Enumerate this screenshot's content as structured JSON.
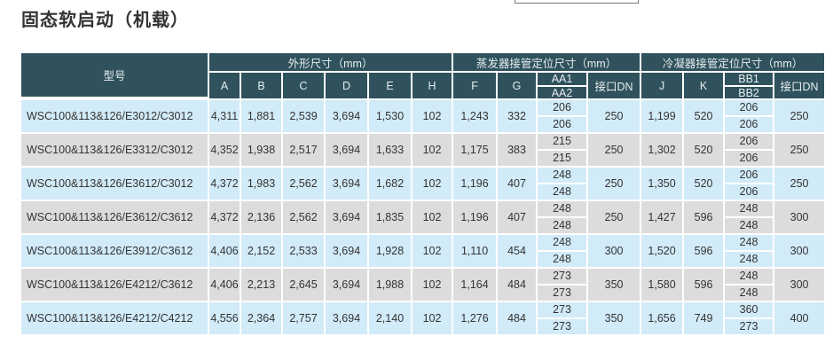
{
  "title": "固态软启动（机载）",
  "headers": {
    "model": "型号",
    "group1": "外形尺寸（mm）",
    "group2": "蒸发器接管定位尺寸（mm）",
    "group3": "冷凝器接管定位尺寸（mm）",
    "cols": [
      "A",
      "B",
      "C",
      "D",
      "E",
      "H",
      "F",
      "G",
      "AA1",
      "AA2",
      "接口DN",
      "J",
      "K",
      "BB1",
      "BB2",
      "接口DN"
    ]
  },
  "rows": [
    {
      "model": "WSC100&113&126/E3012/C3012",
      "A": "4,311",
      "B": "1,881",
      "C": "2,539",
      "D": "3,694",
      "E": "1,530",
      "H": "102",
      "F": "1,243",
      "G": "332",
      "AA1": "206",
      "AA2": "206",
      "DN1": "250",
      "J": "1,199",
      "K": "520",
      "BB1": "206",
      "BB2": "206",
      "DN2": "250"
    },
    {
      "model": "WSC100&113&126/E3312/C3012",
      "A": "4,352",
      "B": "1,938",
      "C": "2,517",
      "D": "3,694",
      "E": "1,633",
      "H": "102",
      "F": "1,175",
      "G": "383",
      "AA1": "215",
      "AA2": "215",
      "DN1": "250",
      "J": "1,302",
      "K": "520",
      "BB1": "206",
      "BB2": "206",
      "DN2": "250"
    },
    {
      "model": "WSC100&113&126/E3612/C3012",
      "A": "4,372",
      "B": "1,983",
      "C": "2,562",
      "D": "3,694",
      "E": "1,682",
      "H": "102",
      "F": "1,196",
      "G": "407",
      "AA1": "248",
      "AA2": "248",
      "DN1": "250",
      "J": "1,350",
      "K": "520",
      "BB1": "206",
      "BB2": "206",
      "DN2": "250"
    },
    {
      "model": "WSC100&113&126/E3612/C3612",
      "A": "4,372",
      "B": "2,136",
      "C": "2,562",
      "D": "3,694",
      "E": "1,835",
      "H": "102",
      "F": "1,196",
      "G": "407",
      "AA1": "248",
      "AA2": "248",
      "DN1": "250",
      "J": "1,427",
      "K": "596",
      "BB1": "248",
      "BB2": "248",
      "DN2": "300"
    },
    {
      "model": "WSC100&113&126/E3912/C3612",
      "A": "4,406",
      "B": "2,152",
      "C": "2,533",
      "D": "3,694",
      "E": "1,928",
      "H": "102",
      "F": "1,110",
      "G": "454",
      "AA1": "248",
      "AA2": "248",
      "DN1": "300",
      "J": "1,520",
      "K": "596",
      "BB1": "248",
      "BB2": "248",
      "DN2": "300"
    },
    {
      "model": "WSC100&113&126/E4212/C3612",
      "A": "4,406",
      "B": "2,213",
      "C": "2,645",
      "D": "3,694",
      "E": "1,988",
      "H": "102",
      "F": "1,164",
      "G": "484",
      "AA1": "273",
      "AA2": "273",
      "DN1": "350",
      "J": "1,580",
      "K": "596",
      "BB1": "248",
      "BB2": "248",
      "DN2": "300"
    },
    {
      "model": "WSC100&113&126/E4212/C4212",
      "A": "4,556",
      "B": "2,364",
      "C": "2,757",
      "D": "3,694",
      "E": "2,140",
      "H": "102",
      "F": "1,276",
      "G": "484",
      "AA1": "273",
      "AA2": "273",
      "DN1": "350",
      "J": "1,656",
      "K": "749",
      "BB1": "360",
      "BB2": "273",
      "DN2": "400"
    }
  ],
  "colors": {
    "header": "#2f525c",
    "row_blue": "#d2ebf8",
    "row_gray": "#dcdcdc"
  }
}
